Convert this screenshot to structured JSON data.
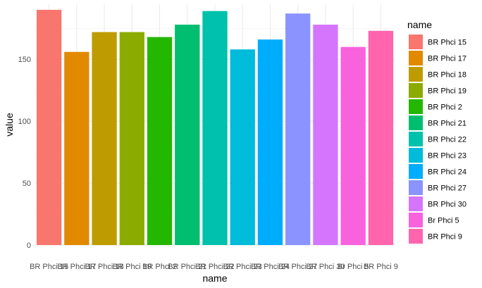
{
  "chart_data": {
    "type": "bar",
    "xlabel": "name",
    "ylabel": "value",
    "categories": [
      "BR Phci 15",
      "BR Phci 17",
      "BR Phci 18",
      "BR Phci 19",
      "BR Phci 2",
      "BR Phci 21",
      "BR Phci 22",
      "BR Phci 23",
      "BR Phci 24",
      "BR Phci 27",
      "BR Phci 30",
      "Br Phci 5",
      "BR Phci 9"
    ],
    "values": [
      190,
      156,
      172,
      172,
      168,
      178,
      189,
      158,
      166,
      187,
      178,
      160,
      173
    ],
    "colors": [
      "#F8766D",
      "#E18A00",
      "#BE9C00",
      "#8CAB00",
      "#24B700",
      "#00BE70",
      "#00C1AB",
      "#00BBDA",
      "#00ACFC",
      "#8B93FF",
      "#D575FE",
      "#F962DD",
      "#FF65AC"
    ],
    "ylim": [
      0,
      190
    ],
    "yticks": [
      0,
      50,
      100,
      150
    ],
    "grid": true,
    "legend": {
      "title": "name",
      "position": "right"
    }
  }
}
